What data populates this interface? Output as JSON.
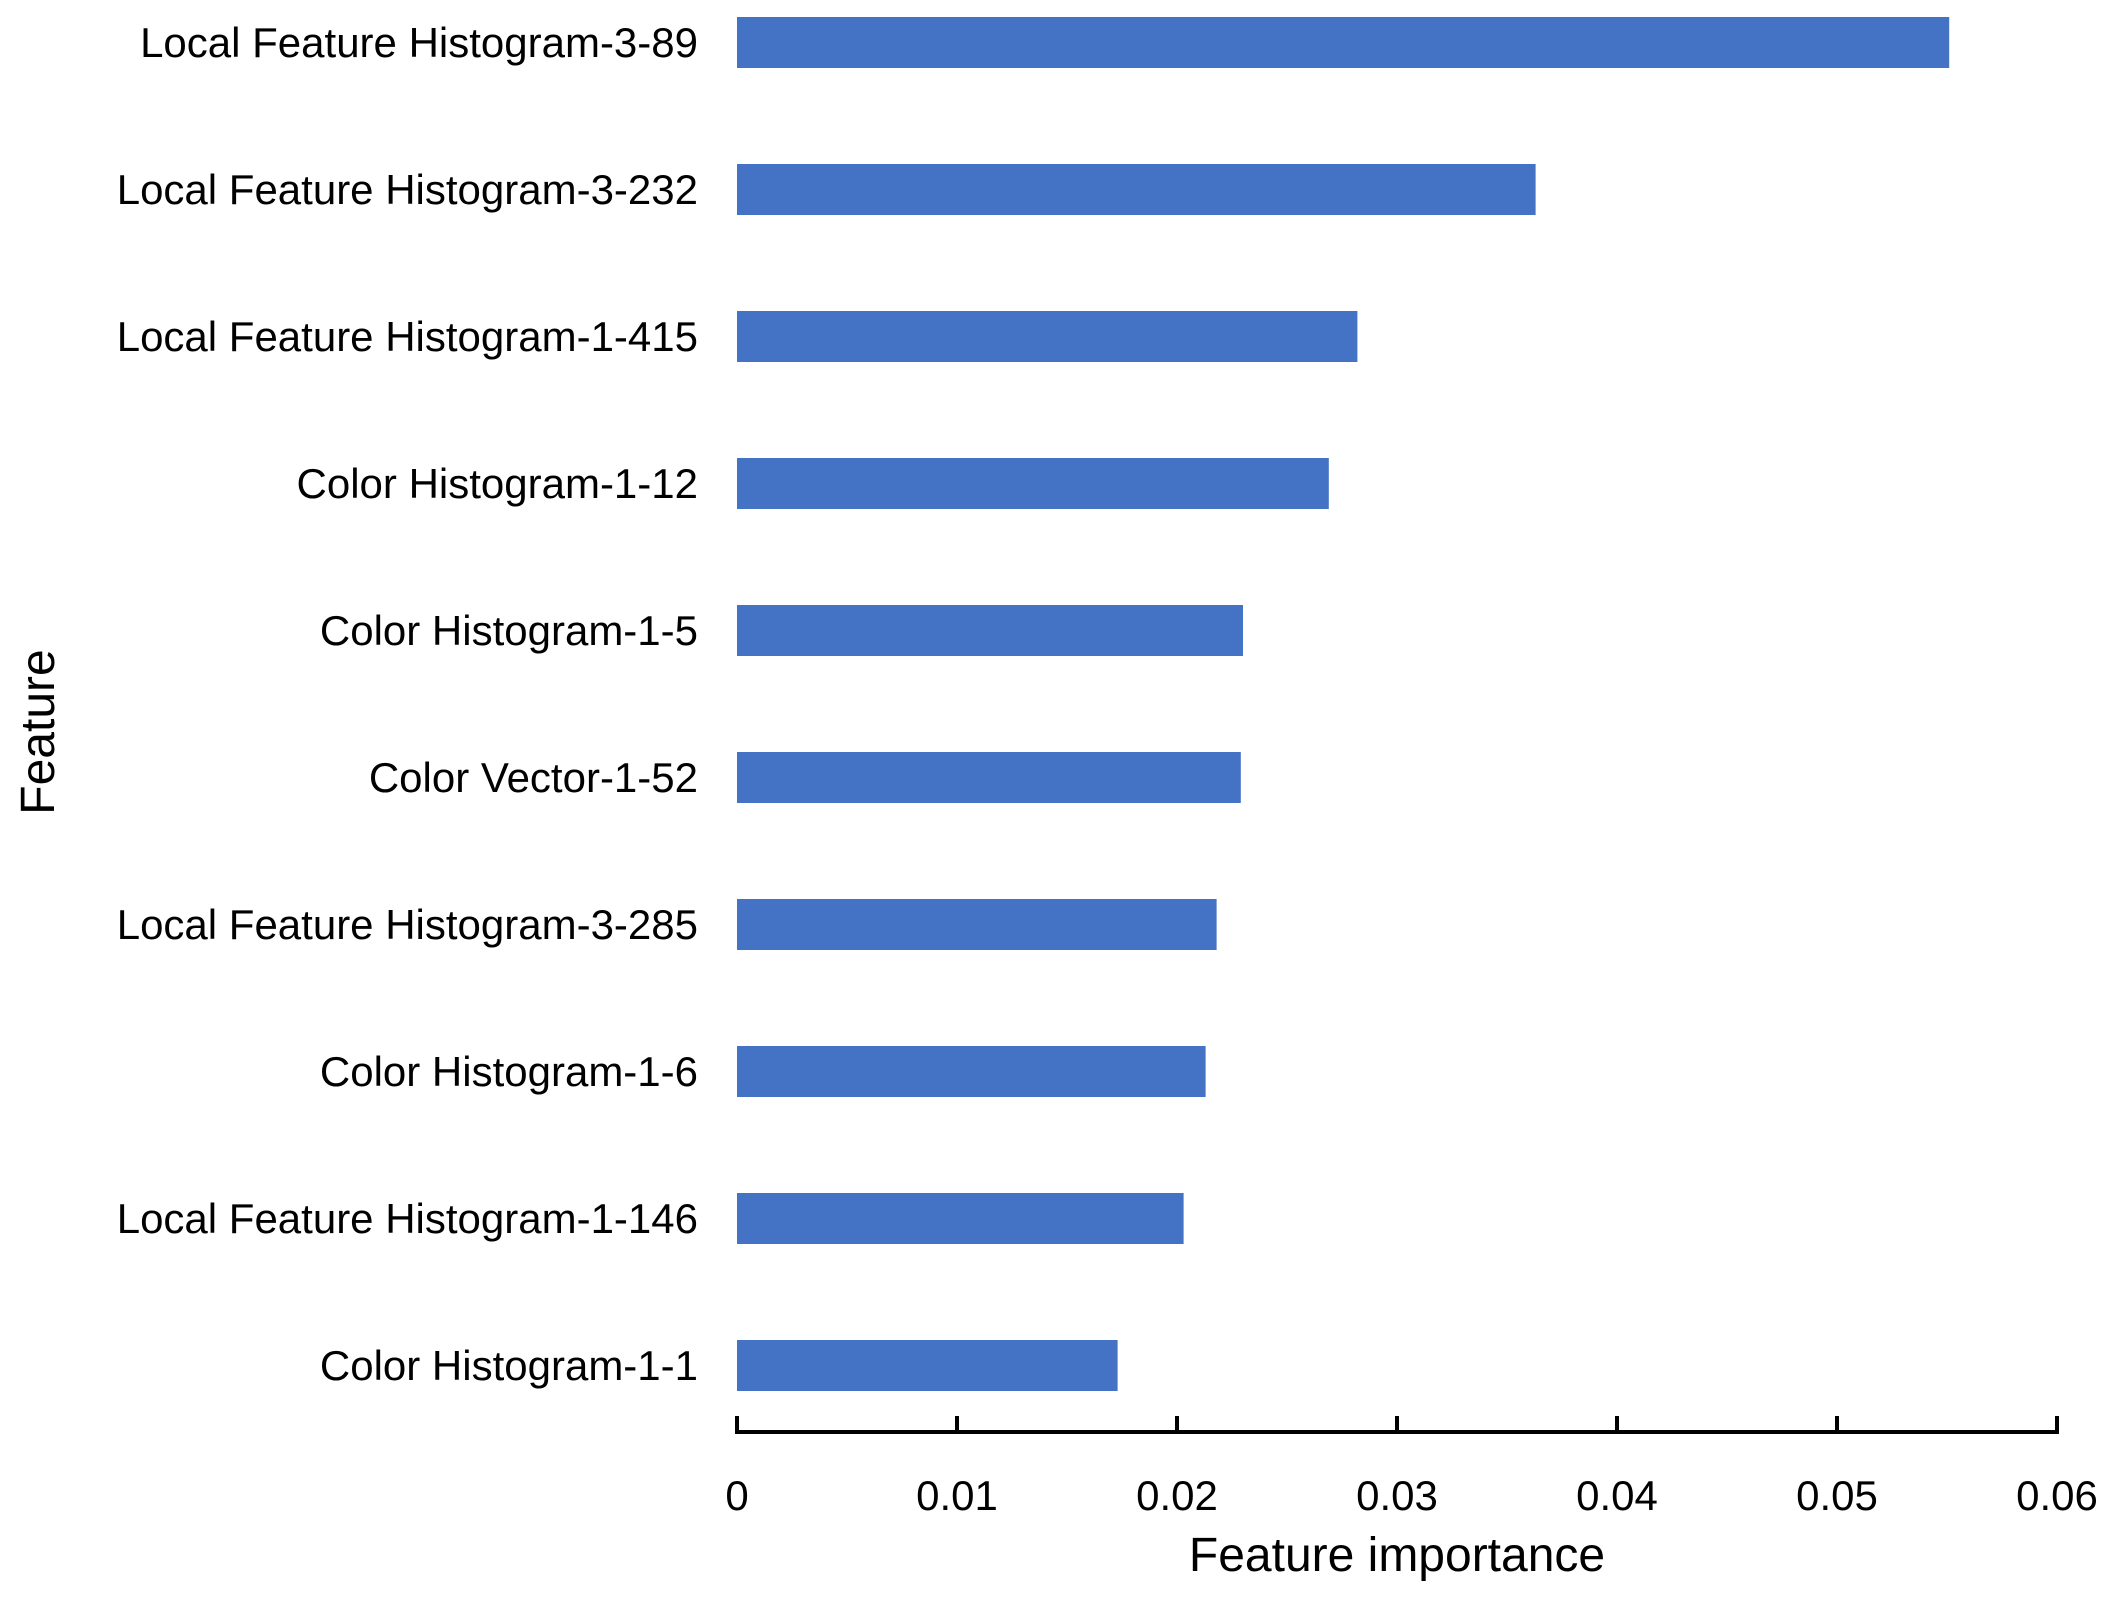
{
  "chart_data": {
    "type": "bar",
    "orientation": "horizontal",
    "title": "",
    "xlabel": "Feature importance",
    "ylabel": "Feature",
    "xlim": [
      0,
      0.06
    ],
    "xticks": [
      0,
      0.01,
      0.02,
      0.03,
      0.04,
      0.05,
      0.06
    ],
    "xtick_labels": [
      "0",
      "0.01",
      "0.02",
      "0.03",
      "0.04",
      "0.05",
      "0.06"
    ],
    "categories": [
      "Local Feature Histogram-3-89",
      "Local Feature Histogram-3-232",
      "Local Feature Histogram-1-415",
      "Color Histogram-1-12",
      "Color Histogram-1-5",
      "Color Vector-1-52",
      "Local Feature Histogram-3-285",
      "Color Histogram-1-6",
      "Local Feature Histogram-1-146",
      "Color Histogram-1-1"
    ],
    "values": [
      0.0551,
      0.0363,
      0.0282,
      0.0269,
      0.023,
      0.0229,
      0.0218,
      0.0213,
      0.0203,
      0.0173
    ],
    "grid": false,
    "legend": "none",
    "bar_color": "#4472C4",
    "axis_color": "#000000"
  }
}
